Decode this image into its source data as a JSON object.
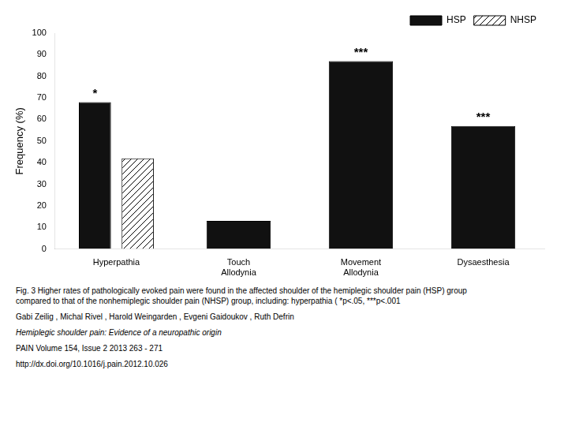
{
  "chart_data": {
    "type": "bar",
    "categories": [
      "Hyperpathia",
      "Touch\nAllodynia",
      "Movement\nAllodynia",
      "Dysaesthesia"
    ],
    "series": [
      {
        "name": "HSP",
        "color": "#111111",
        "values": [
          68,
          13,
          87,
          57
        ]
      },
      {
        "name": "NHSP",
        "color": "#ffffff",
        "values": [
          42,
          null,
          null,
          null
        ]
      }
    ],
    "ylabel": "Frequency (%)",
    "ylim": [
      0,
      100
    ],
    "yticks": [
      0,
      10,
      20,
      30,
      40,
      50,
      60,
      70,
      80,
      90,
      100
    ],
    "grid": false,
    "legend": "upper right",
    "annotations": [
      {
        "series": "HSP",
        "category": "Hyperpathia",
        "text": "*"
      },
      {
        "series": "HSP",
        "category": "Movement\nAllodynia",
        "text": "***"
      },
      {
        "series": "HSP",
        "category": "Dysaesthesia",
        "text": "***"
      }
    ],
    "caption": [
      "Fig. 3  Higher rates of pathologically evoked pain were found in the affected shoulder of the hemiplegic shoulder pain (HSP) group",
      "compared to that of the nonhemiplegic shoulder pain (NHSP) group, including: hyperpathia ( *p<.05, ***p<.001"
    ],
    "author": "Gabi Zeilig , Michal  Rivel , Harold Weingarden , Evgeni  Gaidoukov , Ruth Defrin",
    "journal_title": "Hemiplegic shoulder pain: Evidence of a neuropathic origin",
    "journal_ref": "PAIN Volume 154, Issue 2 2013 263 - 271",
    "doi": "http://dx.doi.org/10.1016/j.pain.2012.10.026"
  }
}
